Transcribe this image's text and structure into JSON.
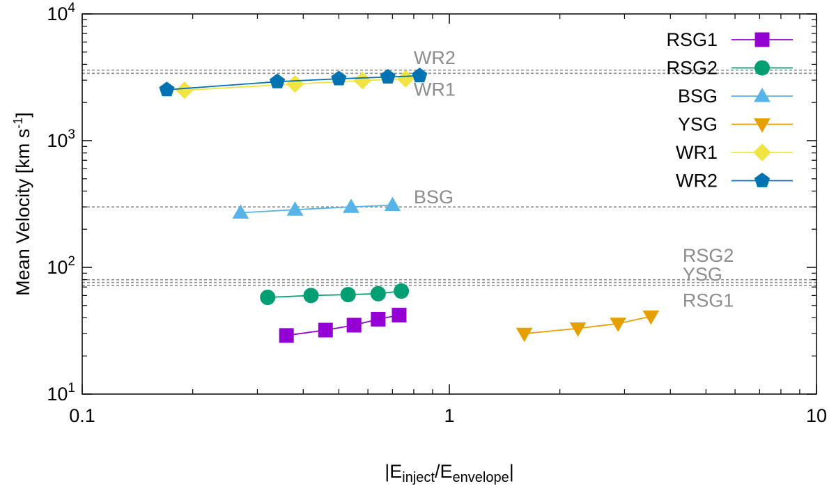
{
  "chart_data": {
    "type": "line",
    "xscale": "log",
    "yscale": "log",
    "xlim": [
      0.1,
      10
    ],
    "ylim": [
      10,
      10000
    ],
    "xlabel": {
      "prefix": "|E",
      "sub1": "inject",
      "mid": "/E",
      "sub2": "envelope",
      "suffix": "|"
    },
    "ylabel": {
      "main": "Mean Velocity [km s",
      "sup": "-1",
      "end": "]"
    },
    "x_ticks": [
      {
        "value": 0.1,
        "label": "0.1"
      },
      {
        "value": 1,
        "label": "1"
      },
      {
        "value": 10,
        "label": "10"
      }
    ],
    "y_ticks": [
      {
        "value": 10,
        "base": "10",
        "exp": "1"
      },
      {
        "value": 100,
        "base": "10",
        "exp": "2"
      },
      {
        "value": 1000,
        "base": "10",
        "exp": "3"
      },
      {
        "value": 10000,
        "base": "10",
        "exp": "4"
      }
    ],
    "reference_lines": [
      {
        "name": "WR2",
        "y": 3600,
        "label_x": 0.8,
        "label_y": 4500
      },
      {
        "name": "WR1",
        "y": 3400,
        "label_x": 0.8,
        "label_y": 2530
      },
      {
        "name": "BSG",
        "y": 300,
        "label_x": 0.8,
        "label_y": 360
      },
      {
        "name": "RSG2",
        "y": 80,
        "label_x": 4.32,
        "label_y": 124
      },
      {
        "name": "YSG",
        "y": 76,
        "label_x": 4.32,
        "label_y": 88
      },
      {
        "name": "RSG1",
        "y": 72,
        "label_x": 4.32,
        "label_y": 55
      }
    ],
    "series": [
      {
        "name": "RSG1",
        "color": "#9400d3",
        "marker": "square",
        "x": [
          0.36,
          0.46,
          0.55,
          0.64,
          0.73
        ],
        "y": [
          29,
          32,
          35,
          39,
          42
        ]
      },
      {
        "name": "RSG2",
        "color": "#009e73",
        "marker": "circle",
        "x": [
          0.32,
          0.42,
          0.53,
          0.64,
          0.74
        ],
        "y": [
          58,
          60,
          61,
          62,
          65
        ]
      },
      {
        "name": "BSG",
        "color": "#56b4e9",
        "marker": "triangle-up",
        "x": [
          0.27,
          0.38,
          0.54,
          0.7
        ],
        "y": [
          270,
          285,
          300,
          310
        ]
      },
      {
        "name": "YSG",
        "color": "#e69f00",
        "marker": "triangle-down",
        "x": [
          1.6,
          2.24,
          2.88,
          3.54
        ],
        "y": [
          30,
          33,
          36,
          41
        ]
      },
      {
        "name": "WR1",
        "color": "#f0e442",
        "marker": "diamond",
        "x": [
          0.19,
          0.38,
          0.58,
          0.76
        ],
        "y": [
          2500,
          2800,
          2980,
          3080
        ]
      },
      {
        "name": "WR2",
        "color": "#0072b2",
        "marker": "pentagon",
        "x": [
          0.17,
          0.34,
          0.5,
          0.68,
          0.83
        ],
        "y": [
          2520,
          2920,
          3080,
          3180,
          3250
        ]
      }
    ],
    "legend": {
      "position": "top-right"
    }
  }
}
